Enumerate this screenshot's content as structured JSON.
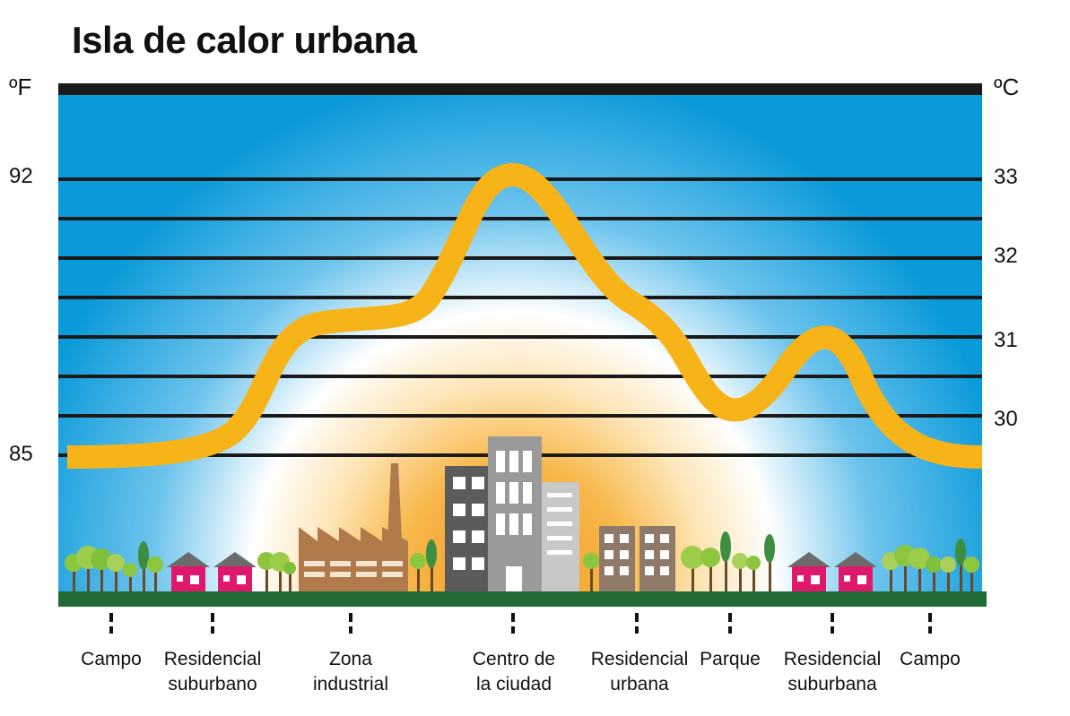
{
  "title": "Isla de calor urbana",
  "axes": {
    "left_unit": "ºF",
    "right_unit": "ºC",
    "left_ticks": [
      "92",
      "85"
    ],
    "right_ticks": [
      "33",
      "32",
      "31",
      "30"
    ]
  },
  "locations": [
    {
      "id": "campo-1",
      "label": "Campo"
    },
    {
      "id": "residencial-suburbano",
      "label": "Residencial\nsuburbano"
    },
    {
      "id": "zona-industrial",
      "label": "Zona\nindustrial"
    },
    {
      "id": "centro",
      "label": "Centro de\nla ciudad"
    },
    {
      "id": "residencial-urbana",
      "label": "Residencial\nurbana"
    },
    {
      "id": "parque",
      "label": "Parque"
    },
    {
      "id": "residencial-suburbana",
      "label": "Residencial\nsuburbana"
    },
    {
      "id": "campo-2",
      "label": "Campo"
    }
  ],
  "colors": {
    "sky_top": "#0a9ad9",
    "sky_light": "#ffffff",
    "heat_core": "#f39a1e",
    "heat_mid": "#fbd28a",
    "curve": "#f7b418",
    "ground": "#1f6a35",
    "grid": "#1a1a1a",
    "house": "#e0186c",
    "roof": "#6b6b6b",
    "factory": "#b07a4a",
    "bldg_dark": "#5b5b5b",
    "bldg_mid": "#9a9a9a",
    "bldg_light": "#c8c8c8",
    "bldg_brown": "#8f7a6a",
    "tree": "#8cc63f",
    "trunk": "#6b4a2a"
  },
  "icons": [
    "house-icon",
    "factory-icon",
    "building-icon",
    "tree-icon"
  ]
}
